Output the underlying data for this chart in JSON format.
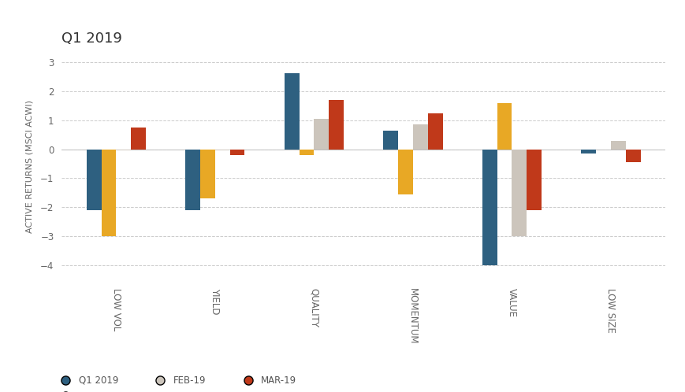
{
  "title": "Q1 2019",
  "ylabel": "ACTIVE RETURNS (MSCI ACWI)",
  "categories": [
    "LOW VOL",
    "YIELD",
    "QUALITY",
    "MOMENTUM",
    "VALUE",
    "LOW SIZE"
  ],
  "series": {
    "Q1 2019": [
      -2.1,
      -2.1,
      2.62,
      0.65,
      -4.0,
      -0.15
    ],
    "JAN-19": [
      -3.0,
      -1.7,
      -0.2,
      -1.55,
      1.6,
      0.0
    ],
    "FEB-19": [
      -0.05,
      -0.05,
      1.05,
      0.85,
      -3.0,
      0.3
    ],
    "MAR-19": [
      0.75,
      -0.2,
      1.7,
      1.25,
      -2.1,
      -0.45
    ]
  },
  "colors": {
    "Q1 2019": "#2e6080",
    "JAN-19": "#e8a825",
    "FEB-19": "#ccc5bc",
    "MAR-19": "#c0391a"
  },
  "ylim": [
    -4.6,
    3.4
  ],
  "yticks": [
    -4,
    -3,
    -2,
    -1,
    0,
    1,
    2,
    3
  ],
  "bar_width": 0.15,
  "background_color": "#ffffff",
  "grid_color": "#cccccc",
  "title_fontsize": 13,
  "label_fontsize": 8,
  "tick_fontsize": 8.5,
  "legend_fontsize": 8.5
}
